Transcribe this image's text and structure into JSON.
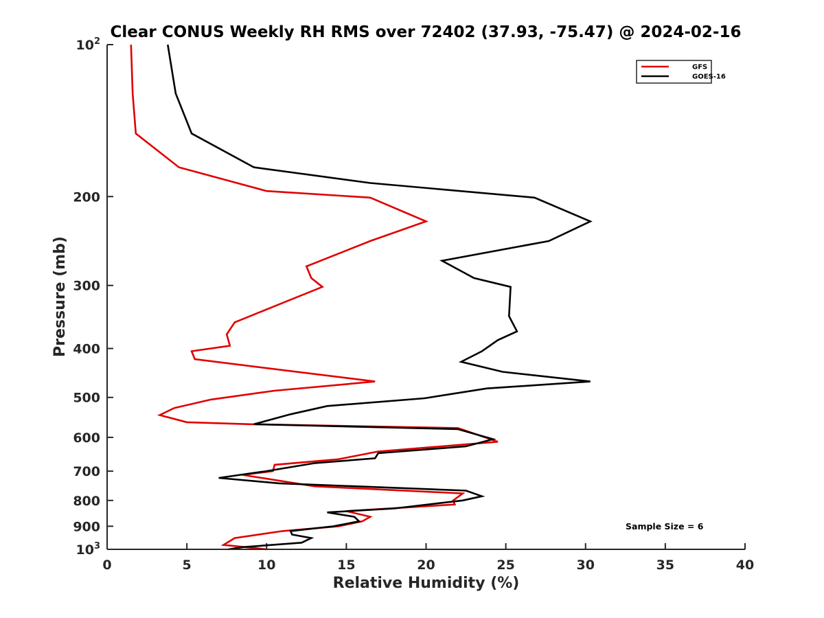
{
  "chart_data": {
    "type": "line",
    "title": "Clear CONUS Weekly RH RMS over 72402 (37.93, -75.47) @ 2024-02-16",
    "xlabel": "Relative Humidity (%)",
    "ylabel": "Pressure (mb)",
    "xlim": [
      0,
      40
    ],
    "ylim": [
      100,
      1000
    ],
    "yscale": "log",
    "y_reversed": true,
    "grid": false,
    "legend_position": "top-right",
    "annotation": "Sample Size = 6",
    "x_ticks": [
      0,
      5,
      10,
      15,
      20,
      25,
      30,
      35,
      40
    ],
    "x_tick_labels": [
      "0",
      "5",
      "10",
      "15",
      "20",
      "25",
      "30",
      "35",
      "40"
    ],
    "y_ticks": [
      {
        "value": 100,
        "base": "10",
        "exp": "2"
      },
      {
        "value": 200,
        "label": "200"
      },
      {
        "value": 300,
        "label": "300"
      },
      {
        "value": 400,
        "label": "400"
      },
      {
        "value": 500,
        "label": "500"
      },
      {
        "value": 600,
        "label": "600"
      },
      {
        "value": 700,
        "label": "700"
      },
      {
        "value": 800,
        "label": "800"
      },
      {
        "value": 900,
        "label": "900"
      },
      {
        "value": 1000,
        "base": "10",
        "exp": "3"
      }
    ],
    "series": [
      {
        "name": "GFS",
        "color": "#e00000",
        "points": [
          [
            1.5,
            100
          ],
          [
            1.6,
            125
          ],
          [
            1.8,
            150
          ],
          [
            4.5,
            175
          ],
          [
            10,
            195
          ],
          [
            16.5,
            201
          ],
          [
            20,
            224
          ],
          [
            16.5,
            245
          ],
          [
            12.5,
            275
          ],
          [
            12.8,
            290
          ],
          [
            13.5,
            302
          ],
          [
            11,
            325
          ],
          [
            8,
            355
          ],
          [
            7.5,
            375
          ],
          [
            7.7,
            395
          ],
          [
            5.3,
            405
          ],
          [
            5.5,
            420
          ],
          [
            16.8,
            465
          ],
          [
            10.5,
            485
          ],
          [
            6.5,
            505
          ],
          [
            4.2,
            525
          ],
          [
            3.3,
            542
          ],
          [
            5,
            560
          ],
          [
            9,
            565
          ],
          [
            22,
            575
          ],
          [
            24.5,
            612
          ],
          [
            17,
            640
          ],
          [
            14.5,
            663
          ],
          [
            10.5,
            680
          ],
          [
            10.4,
            700
          ],
          [
            8.5,
            712
          ],
          [
            13,
            750
          ],
          [
            22.3,
            775
          ],
          [
            21.7,
            800
          ],
          [
            21.8,
            815
          ],
          [
            15,
            840
          ],
          [
            16.5,
            862
          ],
          [
            16,
            880
          ],
          [
            14.5,
            900
          ],
          [
            11,
            920
          ],
          [
            8,
            950
          ],
          [
            7.3,
            980
          ],
          [
            10,
            1000
          ]
        ]
      },
      {
        "name": "GOES-16",
        "color": "#000000",
        "points": [
          [
            3.8,
            100
          ],
          [
            4.3,
            125
          ],
          [
            5.3,
            150
          ],
          [
            9.2,
            175
          ],
          [
            16.5,
            188
          ],
          [
            26.8,
            201
          ],
          [
            30.3,
            224
          ],
          [
            27.7,
            245
          ],
          [
            21,
            268
          ],
          [
            23,
            290
          ],
          [
            25.3,
            302
          ],
          [
            25.2,
            345
          ],
          [
            25.7,
            370
          ],
          [
            24.5,
            385
          ],
          [
            23.5,
            405
          ],
          [
            22.2,
            425
          ],
          [
            24.8,
            445
          ],
          [
            30.3,
            465
          ],
          [
            23.8,
            480
          ],
          [
            19.9,
            502
          ],
          [
            13.8,
            520
          ],
          [
            11.5,
            540
          ],
          [
            9.2,
            565
          ],
          [
            22,
            578
          ],
          [
            24.2,
            605
          ],
          [
            22.5,
            625
          ],
          [
            17,
            645
          ],
          [
            16.8,
            660
          ],
          [
            13,
            675
          ],
          [
            10,
            700
          ],
          [
            7,
            722
          ],
          [
            10.8,
            740
          ],
          [
            22.5,
            765
          ],
          [
            23.5,
            785
          ],
          [
            22.3,
            800
          ],
          [
            18,
            830
          ],
          [
            13.8,
            845
          ],
          [
            15.5,
            862
          ],
          [
            15.8,
            880
          ],
          [
            14.2,
            900
          ],
          [
            11.5,
            920
          ],
          [
            11.6,
            935
          ],
          [
            12.8,
            950
          ],
          [
            12.2,
            970
          ],
          [
            8.5,
            990
          ],
          [
            7.6,
            1000
          ]
        ]
      }
    ]
  }
}
